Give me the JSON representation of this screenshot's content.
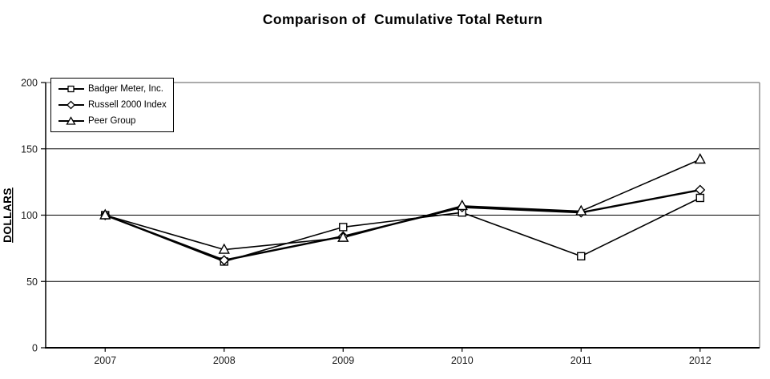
{
  "title": "Comparison of  Cumulative Total Return",
  "y_axis_title": "DOLLARS",
  "chart_data": {
    "type": "line",
    "title": "Comparison of  Cumulative Total Return",
    "ylabel": "DOLLARS",
    "xlabel": "",
    "categories": [
      "2007",
      "2008",
      "2009",
      "2010",
      "2011",
      "2012"
    ],
    "series": [
      {
        "name": "Badger Meter, Inc.",
        "marker": "square",
        "values": [
          100,
          65,
          91,
          102,
          69,
          113
        ]
      },
      {
        "name": "Russell 2000 Index",
        "marker": "diamond",
        "values": [
          100,
          66,
          84,
          106,
          102,
          119
        ]
      },
      {
        "name": "Peer Group",
        "marker": "triangle",
        "values": [
          100,
          74,
          83,
          107,
          103,
          142
        ]
      }
    ],
    "ylim": [
      0,
      200
    ],
    "yticks": [
      0,
      50,
      100,
      150,
      200
    ],
    "grid": true,
    "legend_position": "top-left-inside",
    "colors": {
      "line": "#000000",
      "marker_fill": "#ffffff",
      "frame_gray": "#8f8f8f",
      "background": "#ffffff",
      "tick_label": "#1a1a1a"
    }
  }
}
